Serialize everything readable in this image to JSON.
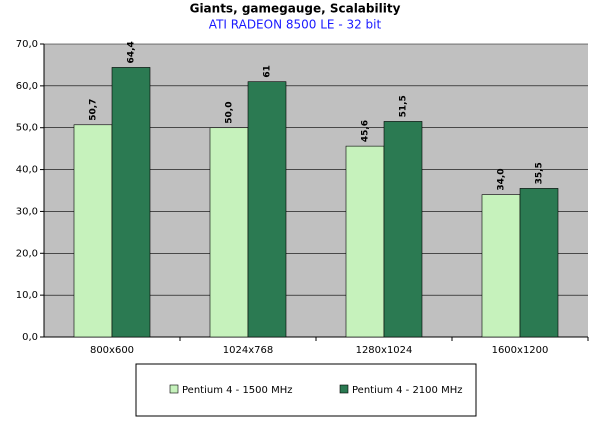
{
  "chart_data": {
    "type": "bar",
    "title": "Giants, gamegauge, Scalability",
    "subtitle": "ATI RADEON 8500 LE - 32 bit",
    "categories": [
      "800x600",
      "1024x768",
      "1280x1024",
      "1600x1200"
    ],
    "series": [
      {
        "name": "Pentium 4 - 1500 MHz",
        "color": "#c6f2bc",
        "values": [
          50.7,
          50.0,
          45.6,
          34.0
        ],
        "value_labels": [
          "50,7",
          "50,0",
          "45,6",
          "34,0"
        ]
      },
      {
        "name": "Pentium 4 - 2100 MHz",
        "color": "#2b7a52",
        "values": [
          64.4,
          61,
          51.5,
          35.5
        ],
        "value_labels": [
          "64,4",
          "61",
          "51,5",
          "35,5"
        ]
      }
    ],
    "ylim": [
      0,
      70
    ],
    "yticks": [
      {
        "value": 0,
        "label": "0,0"
      },
      {
        "value": 10,
        "label": "10,0"
      },
      {
        "value": 20,
        "label": "20,0"
      },
      {
        "value": 30,
        "label": "30,0"
      },
      {
        "value": 40,
        "label": "40,0"
      },
      {
        "value": 50,
        "label": "50,0"
      },
      {
        "value": 60,
        "label": "60,0"
      },
      {
        "value": 70,
        "label": "70,0"
      }
    ],
    "grid": true,
    "legend": "bottom"
  }
}
